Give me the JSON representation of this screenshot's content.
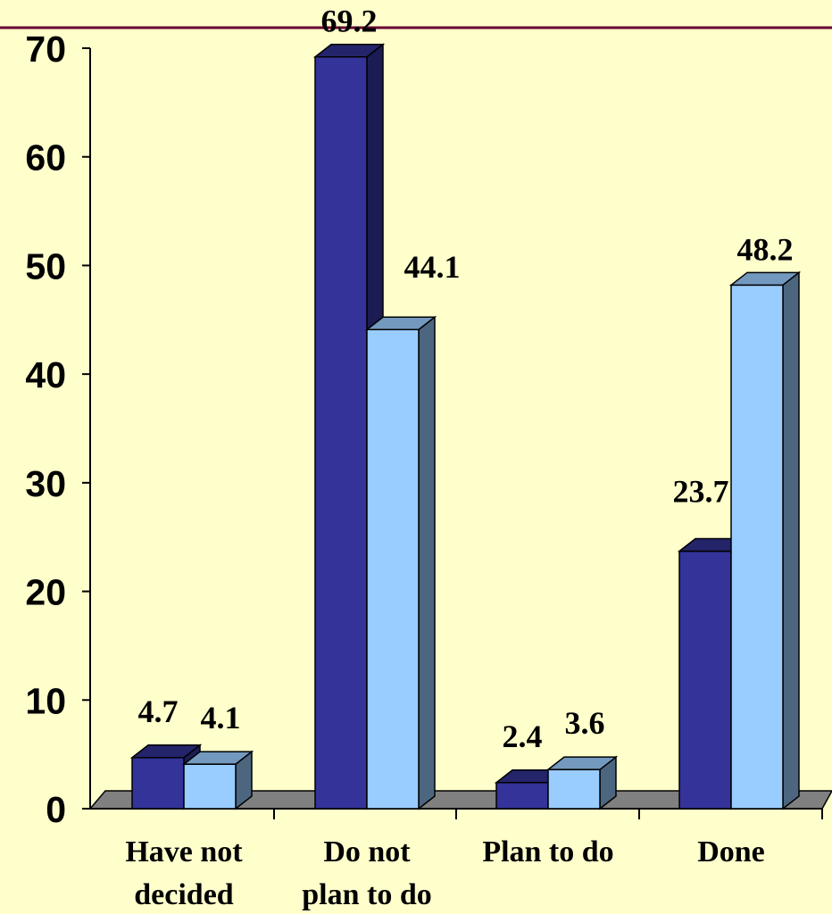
{
  "chart_data": {
    "type": "bar",
    "style": "3d-clustered-column",
    "categories": [
      [
        "Have not",
        "decided"
      ],
      [
        "Do not",
        "plan to do"
      ],
      [
        "Plan to do"
      ],
      [
        "Done"
      ]
    ],
    "series": [
      {
        "values": [
          4.7,
          69.2,
          2.4,
          23.7
        ],
        "color": "#333399"
      },
      {
        "values": [
          4.1,
          44.1,
          3.6,
          48.2
        ],
        "color": "#99CCFF"
      }
    ],
    "data_labels": [
      [
        "4.7",
        "69.2",
        "2.4",
        "23.7"
      ],
      [
        "4.1",
        "44.1",
        "3.6",
        "48.2"
      ]
    ],
    "ylim": [
      0,
      70
    ],
    "yticks": [
      "0",
      "10",
      "20",
      "30",
      "40",
      "50",
      "60",
      "70"
    ],
    "grid": false,
    "legend": "none",
    "colors": {
      "background": "#FFFFCC",
      "floor": "#808080",
      "top_rule": "#660033"
    }
  }
}
